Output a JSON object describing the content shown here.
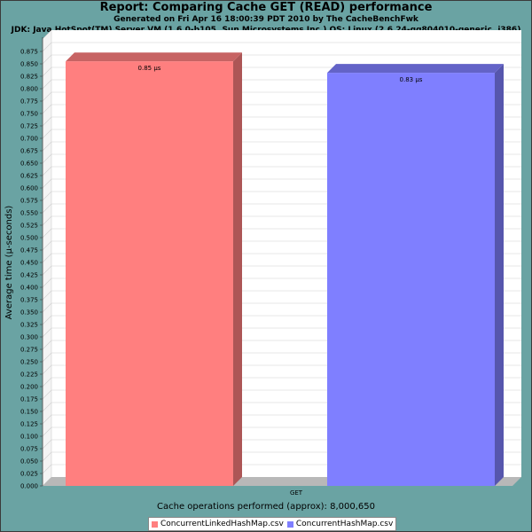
{
  "chart_data": {
    "type": "bar",
    "title": "Report: Comparing Cache GET (READ) performance",
    "subtitle_lines": [
      "Generated on Fri Apr 16 18:00:39 PDT 2010 by The CacheBenchFwk",
      "JDK: Java HotSpot(TM) Server VM (1.6.0-b105, Sun Microsystems Inc.) OS: Linux (2.6.24-gg804010-generic, i386)"
    ],
    "categories": [
      "GET"
    ],
    "series": [
      {
        "name": "ConcurrentLinkedHashMap.csv",
        "values": [
          0.855
        ],
        "label": "0.85 μs",
        "color": "#ff7f7f"
      },
      {
        "name": "ConcurrentHashMap.csv",
        "values": [
          0.832
        ],
        "label": "0.83 μs",
        "color": "#7f7fff"
      }
    ],
    "xlabel": "Cache operations performed (approx): 8,000,650",
    "ylabel": "Average time (μ-seconds)",
    "ylim": [
      0,
      0.9
    ],
    "yticks": [
      "0.000",
      "0.025",
      "0.050",
      "0.075",
      "0.100",
      "0.125",
      "0.150",
      "0.175",
      "0.200",
      "0.225",
      "0.250",
      "0.275",
      "0.300",
      "0.325",
      "0.350",
      "0.375",
      "0.400",
      "0.425",
      "0.450",
      "0.475",
      "0.500",
      "0.525",
      "0.550",
      "0.575",
      "0.600",
      "0.625",
      "0.650",
      "0.675",
      "0.700",
      "0.725",
      "0.750",
      "0.775",
      "0.800",
      "0.825",
      "0.850",
      "0.875"
    ],
    "grid": true,
    "legend_position": "bottom",
    "style": "3d"
  },
  "colors": {
    "background": "#6aa3a3",
    "plot": "#ffffff",
    "gridline": "#d0d0d0",
    "wall": "#b8b8b8"
  }
}
